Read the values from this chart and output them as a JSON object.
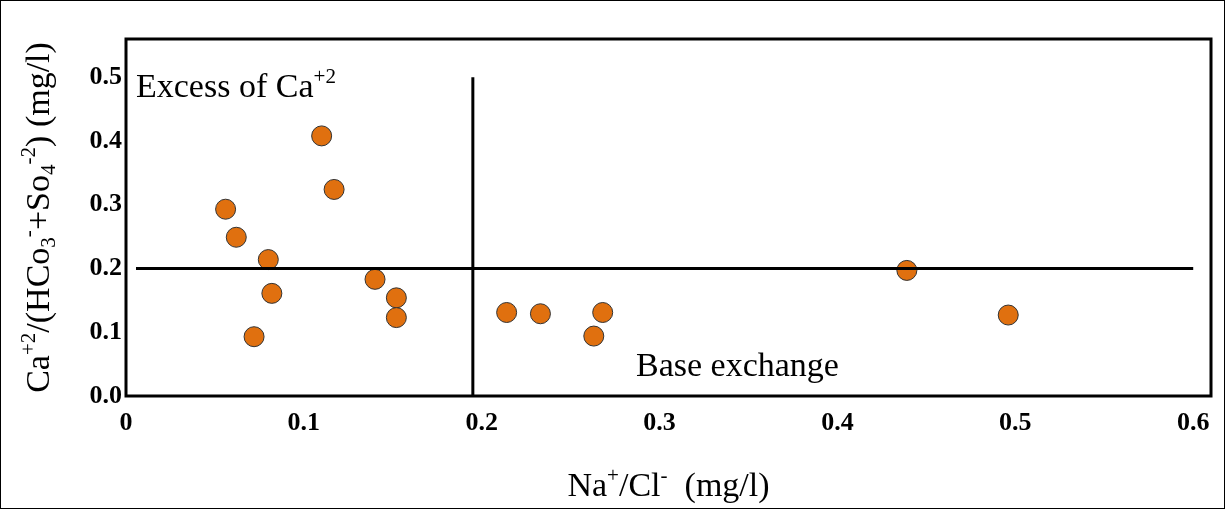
{
  "chart_data": {
    "type": "scatter",
    "xlabel": "Na$^{+}$/Cl$^{-}$  (mg/l)",
    "ylabel": "Ca$^{+2}$/(HCo$_{3}$$^{-}$+So$_{4}$$^{-2}$) (mg/l)",
    "annotations": [
      "Excess of Ca$^{+2}$",
      "Base exchange"
    ],
    "series": [
      {
        "color": "#e0700f",
        "x": [
          0.056,
          0.062,
          0.08,
          0.082,
          0.072,
          0.11,
          0.117,
          0.14,
          0.152,
          0.152,
          0.214,
          0.233,
          0.268,
          0.263,
          0.439,
          0.496
        ],
        "values": [
          0.293,
          0.249,
          0.214,
          0.161,
          0.093,
          0.408,
          0.324,
          0.183,
          0.154,
          0.123,
          0.131,
          0.129,
          0.131,
          0.094,
          0.197,
          0.127
        ]
      }
    ],
    "xlim": [
      0,
      0.61
    ],
    "ylim": [
      0,
      0.56
    ],
    "xticks": [
      0,
      0.1,
      0.2,
      0.3,
      0.4,
      0.5,
      0.6
    ],
    "yticks": [
      {
        "value": 0,
        "label": "0.0"
      },
      0.1,
      0.2,
      0.3,
      0.4,
      0.5
    ],
    "ref_lines": [
      {
        "axis": "y",
        "value": 0.2
      },
      {
        "axis": "x",
        "value": 0.195
      }
    ],
    "grid": false,
    "legend": false,
    "marker": "circle"
  }
}
